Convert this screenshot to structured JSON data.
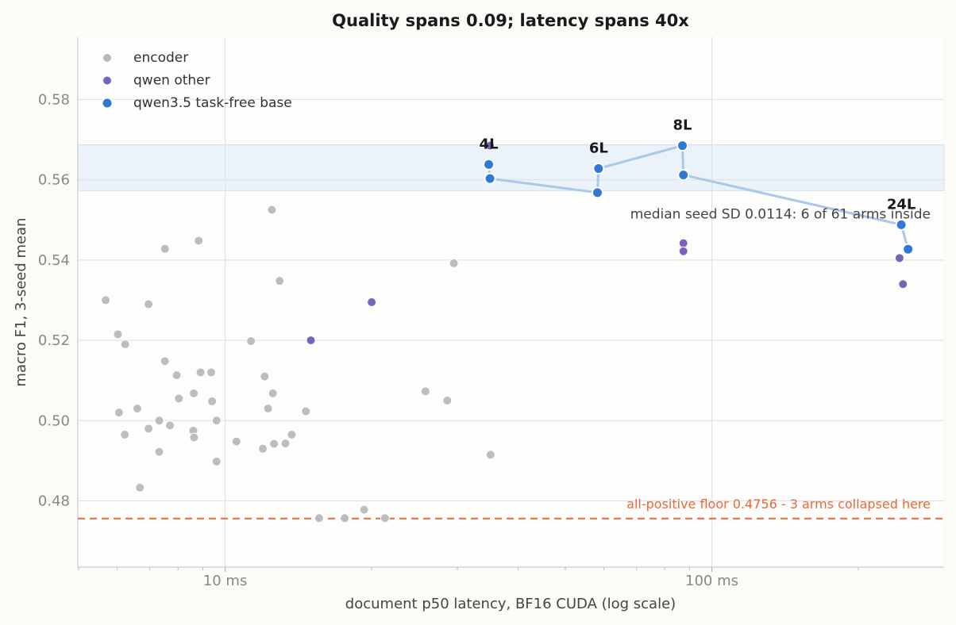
{
  "chart_data": {
    "type": "scatter",
    "title": "Quality spans 0.09; latency spans 40x",
    "xlabel": "document p50 latency, BF16 CUDA (log scale)",
    "ylabel": "macro F1, 3-seed mean",
    "xscale": "log",
    "xlim": [
      4.98,
      300
    ],
    "ylim": [
      0.4635,
      0.5955
    ],
    "x_ticks": [
      {
        "value": 10,
        "label": "10 ms"
      },
      {
        "value": 100,
        "label": "100 ms"
      }
    ],
    "y_ticks": [
      {
        "value": 0.48,
        "label": "0.48"
      },
      {
        "value": 0.5,
        "label": "0.50"
      },
      {
        "value": 0.52,
        "label": "0.52"
      },
      {
        "value": 0.54,
        "label": "0.54"
      },
      {
        "value": 0.56,
        "label": "0.56"
      },
      {
        "value": 0.58,
        "label": "0.58"
      }
    ],
    "grid": true,
    "legend_position": "top-left",
    "series": [
      {
        "name": "encoder",
        "color": "#b9b9b9",
        "points": [
          [
            5.68,
            0.53
          ],
          [
            6.02,
            0.5215
          ],
          [
            6.23,
            0.519
          ],
          [
            6.05,
            0.502
          ],
          [
            6.22,
            0.4965
          ],
          [
            6.6,
            0.503
          ],
          [
            6.68,
            0.4833
          ],
          [
            6.96,
            0.498
          ],
          [
            6.96,
            0.529
          ],
          [
            7.32,
            0.4922
          ],
          [
            7.32,
            0.5
          ],
          [
            7.52,
            0.5428
          ],
          [
            7.52,
            0.5148
          ],
          [
            7.7,
            0.4988
          ],
          [
            7.95,
            0.5113
          ],
          [
            8.03,
            0.5055
          ],
          [
            8.6,
            0.4975
          ],
          [
            8.63,
            0.4958
          ],
          [
            8.62,
            0.5068
          ],
          [
            8.82,
            0.5448
          ],
          [
            8.9,
            0.512
          ],
          [
            9.36,
            0.512
          ],
          [
            9.4,
            0.5048
          ],
          [
            9.6,
            0.5
          ],
          [
            9.6,
            0.4898
          ],
          [
            10.55,
            0.4948
          ],
          [
            11.3,
            0.5198
          ],
          [
            11.95,
            0.493
          ],
          [
            12.05,
            0.511
          ],
          [
            12.25,
            0.503
          ],
          [
            12.47,
            0.5525
          ],
          [
            12.53,
            0.5068
          ],
          [
            12.6,
            0.4942
          ],
          [
            12.94,
            0.5348
          ],
          [
            13.3,
            0.4943
          ],
          [
            13.7,
            0.4965
          ],
          [
            14.65,
            0.5023
          ],
          [
            14.97,
            0.5198
          ],
          [
            15.6,
            0.4757
          ],
          [
            17.6,
            0.4757
          ],
          [
            19.3,
            0.4778
          ],
          [
            21.3,
            0.4757
          ],
          [
            25.8,
            0.5073
          ],
          [
            28.6,
            0.505
          ],
          [
            29.5,
            0.5392
          ],
          [
            35.1,
            0.4915
          ]
        ]
      },
      {
        "name": "qwen other",
        "color": "#7a63bd",
        "points": [
          [
            15.0,
            0.52
          ],
          [
            20.0,
            0.5295
          ],
          [
            35.0,
            0.5685
          ],
          [
            87.4,
            0.5442
          ],
          [
            87.4,
            0.5422
          ],
          [
            243,
            0.5405
          ],
          [
            247,
            0.534
          ]
        ]
      },
      {
        "name": "qwen3.5 task-free base",
        "color": "#2f78d6",
        "points": [
          [
            34.8,
            0.5638
          ],
          [
            35.0,
            0.5603
          ],
          [
            58.2,
            0.5568
          ],
          [
            58.5,
            0.5628
          ],
          [
            87.0,
            0.5685
          ],
          [
            87.4,
            0.5612
          ],
          [
            245,
            0.5488
          ],
          [
            253,
            0.5427
          ]
        ]
      }
    ],
    "base_path": [
      [
        34.8,
        0.5638
      ],
      [
        35.0,
        0.5603
      ],
      [
        58.2,
        0.5568
      ],
      [
        58.5,
        0.5628
      ],
      [
        87.0,
        0.5685
      ],
      [
        87.4,
        0.5612
      ],
      [
        245,
        0.5488
      ],
      [
        253,
        0.5427
      ]
    ],
    "layer_labels": [
      {
        "text": "4L",
        "x": 34.8,
        "y": 0.5638
      },
      {
        "text": "6L",
        "x": 58.5,
        "y": 0.5628
      },
      {
        "text": "8L",
        "x": 87.0,
        "y": 0.5685
      },
      {
        "text": "24L",
        "x": 245,
        "y": 0.5488
      }
    ],
    "seed_band": {
      "y0": 0.5573,
      "y1": 0.5687,
      "y_center": 0.56
    },
    "seed_band_label": "median seed SD 0.0114: 6 of 61 arms inside",
    "floor": {
      "y": 0.4756,
      "label": "all-positive floor 0.4756 - 3 arms collapsed here",
      "color": "#e8693a"
    }
  }
}
